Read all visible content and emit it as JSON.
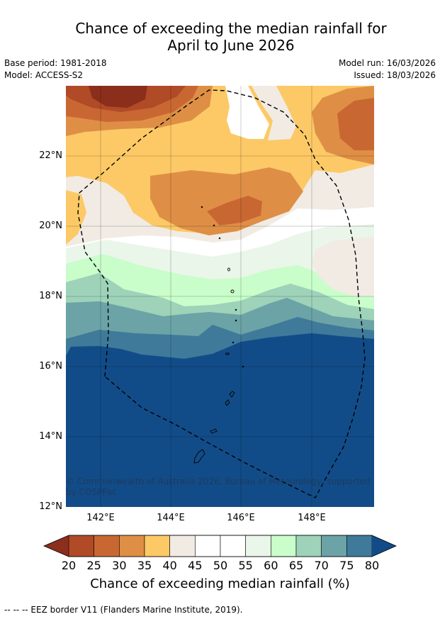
{
  "title_line1": "Chance of exceeding the median rainfall for",
  "title_line2": "April to June 2026",
  "meta": {
    "base_period": "Base period: 1981-2018",
    "model": "Model: ACCESS-S2",
    "model_run": "Model run: 16/03/2026",
    "issued": "Issued: 18/03/2026"
  },
  "map": {
    "lat_labels": [
      "22°N",
      "20°N",
      "18°N",
      "16°N",
      "14°N",
      "12°N"
    ],
    "lon_labels": [
      "142°E",
      "144°E",
      "146°E",
      "148°E"
    ],
    "copyright": "© Commonwealth of Australia 2026, Bureau of Meteorology, supported by COSPPac"
  },
  "colorbar": {
    "ticks": [
      "20",
      "25",
      "30",
      "35",
      "40",
      "45",
      "50",
      "55",
      "60",
      "65",
      "70",
      "75",
      "80"
    ],
    "colors": [
      "#8b2e1c",
      "#b04a27",
      "#c96733",
      "#de8f45",
      "#fcc966",
      "#f1ebe4",
      "#ffffff",
      "#ffffff",
      "#e9f6e9",
      "#c9fdca",
      "#9ed2b9",
      "#6ba3a7",
      "#3f7a9a",
      "#124c88"
    ],
    "label": "Chance of exceeding median rainfall (%)"
  },
  "footnote": "--  --  -- EEZ border V11 (Flanders Marine Institute, 2019)."
}
